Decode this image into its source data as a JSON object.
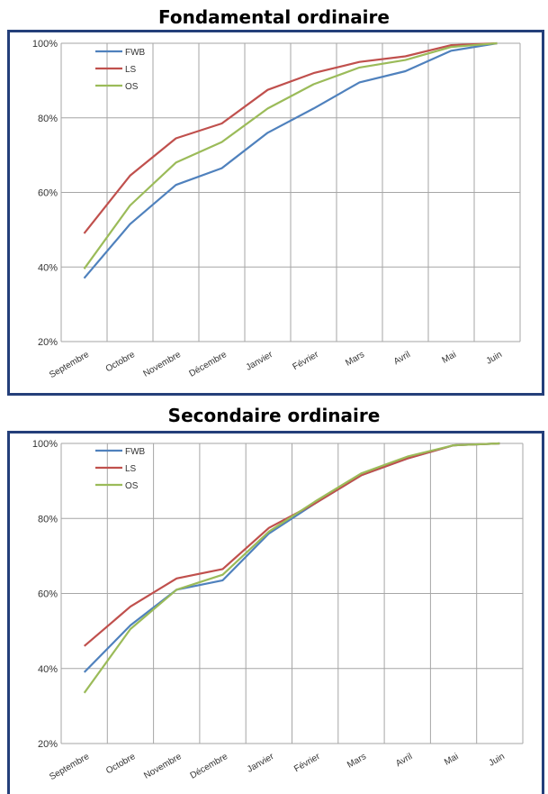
{
  "chart_data": [
    {
      "type": "line",
      "title": "Fondamental ordinaire",
      "categories": [
        "Septembre",
        "Octobre",
        "Novembre",
        "Décembre",
        "Janvier",
        "Février",
        "Mars",
        "Avril",
        "Mai",
        "Juin"
      ],
      "yticks": [
        "20%",
        "40%",
        "60%",
        "80%",
        "100%"
      ],
      "ylim": [
        20,
        100
      ],
      "grid": true,
      "legend_position": "top-left",
      "series": [
        {
          "name": "FWB",
          "color": "#4f81bd",
          "values": [
            37,
            51.5,
            62,
            66.5,
            76,
            82.5,
            89.5,
            92.5,
            98,
            100
          ]
        },
        {
          "name": "LS",
          "color": "#c0504d",
          "values": [
            49,
            64.5,
            74.5,
            78.5,
            87.5,
            92,
            95,
            96.5,
            99.5,
            100
          ]
        },
        {
          "name": "OS",
          "color": "#9bbb59",
          "values": [
            39.5,
            56.5,
            68,
            73.5,
            82.5,
            89,
            93.5,
            95.5,
            99,
            100
          ]
        }
      ]
    },
    {
      "type": "line",
      "title": "Secondaire ordinaire",
      "categories": [
        "Septembre",
        "Octobre",
        "Novembre",
        "Décembre",
        "Janvier",
        "Février",
        "Mars",
        "Avril",
        "Mai",
        "Juin"
      ],
      "yticks": [
        "20%",
        "40%",
        "60%",
        "80%",
        "100%"
      ],
      "ylim": [
        20,
        100
      ],
      "grid": true,
      "legend_position": "top-left",
      "series": [
        {
          "name": "FWB",
          "color": "#4f81bd",
          "values": [
            39,
            51.5,
            61,
            63.5,
            76,
            84,
            91.5,
            96,
            99.5,
            100
          ]
        },
        {
          "name": "LS",
          "color": "#c0504d",
          "values": [
            46,
            56.5,
            64,
            66.5,
            77.5,
            84,
            91.5,
            96,
            99.5,
            100
          ]
        },
        {
          "name": "OS",
          "color": "#9bbb59",
          "values": [
            33.5,
            50.5,
            61,
            65,
            76.5,
            84.5,
            92,
            96.5,
            99.5,
            100
          ]
        }
      ]
    }
  ]
}
